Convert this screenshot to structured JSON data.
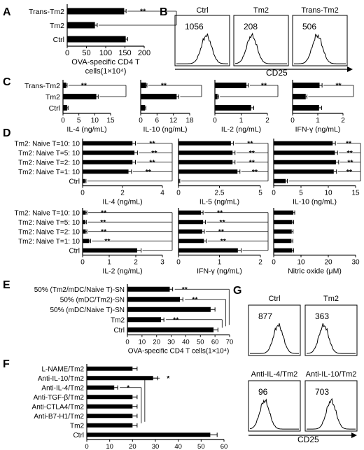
{
  "panel_letters": [
    "A",
    "B",
    "C",
    "D",
    "E",
    "F",
    "G"
  ],
  "chart_data": [
    {
      "id": "A",
      "panel": "A",
      "type": "bar",
      "categories": [
        "Trans-Tm2",
        "Tm2",
        "Ctrl"
      ],
      "values": [
        148,
        72,
        152
      ],
      "errors": [
        5,
        6,
        5
      ],
      "xlim": [
        0,
        200
      ],
      "xticks": [
        "0",
        "50",
        "100",
        "150",
        "200"
      ],
      "xlabel": "OVA-specific CD4 T cells(1×10⁴)",
      "sig": [
        {
          "from": 0,
          "to": 1,
          "label": "**"
        }
      ]
    },
    {
      "id": "C1",
      "panel": "C",
      "type": "bar",
      "categories": [
        "Trans-Tm2",
        "Tm2",
        "Ctrl"
      ],
      "values": [
        1.0,
        10.5,
        1.3
      ],
      "errors": [
        0.3,
        0.6,
        0.3
      ],
      "xlim": [
        0,
        15
      ],
      "xticks": [
        "0",
        "5",
        "10",
        "15"
      ],
      "xlabel": "IL-4 (ng/mL)",
      "sig": [
        {
          "from": 0,
          "to": 1,
          "label": "**"
        }
      ]
    },
    {
      "id": "C2",
      "panel": "C",
      "type": "bar",
      "categories": [
        "Trans-Tm2",
        "Tm2",
        "Ctrl"
      ],
      "values": [
        2.0,
        13.2,
        1.6
      ],
      "errors": [
        0.3,
        0.8,
        0.3
      ],
      "xlim": [
        0,
        18
      ],
      "xticks": [
        "0",
        "6",
        "12",
        "18"
      ],
      "xlabel": "IL-10 (ng/mL)",
      "sig": [
        {
          "from": 0,
          "to": 1,
          "label": "**"
        }
      ]
    },
    {
      "id": "C3",
      "panel": "C",
      "type": "bar",
      "categories": [
        "Trans-Tm2",
        "Tm2",
        "Ctrl"
      ],
      "values": [
        1.2,
        0.1,
        1.38
      ],
      "errors": [
        0.08,
        0.04,
        0.1
      ],
      "xlim": [
        0,
        2
      ],
      "xticks": [
        "0",
        "1",
        "2"
      ],
      "xlabel": "IL-2 (ng/mL)",
      "sig": [
        {
          "from": 0,
          "to": 1,
          "label": "**"
        }
      ]
    },
    {
      "id": "C4",
      "panel": "C",
      "type": "bar",
      "categories": [
        "Trans-Tm2",
        "Tm2",
        "Ctrl"
      ],
      "values": [
        1.07,
        0.52,
        1.05
      ],
      "errors": [
        0.1,
        0.05,
        0.1
      ],
      "xlim": [
        0,
        2
      ],
      "xticks": [
        "0",
        "1",
        "2"
      ],
      "xlabel": "IFN-γ (ng/mL)",
      "sig": [
        {
          "from": 0,
          "to": 1,
          "label": "**"
        }
      ]
    },
    {
      "id": "D1",
      "panel": "D",
      "type": "bar",
      "categories": [
        "Tm2: Naive T=10: 10",
        "Tm2: Naive T=5: 10",
        "Tm2: Naive T=2: 10",
        "Tm2: Naive T=1: 10",
        "Ctrl"
      ],
      "values": [
        2.5,
        2.6,
        2.5,
        2.3,
        0.12
      ],
      "errors": [
        0.15,
        0.15,
        0.15,
        0.15,
        0.05
      ],
      "xlim": [
        0,
        4
      ],
      "xticks": [
        "0",
        "2",
        "4"
      ],
      "xlabel": "IL-4 (ng/mL)",
      "sig": [
        {
          "from": 0,
          "to": 4,
          "label": "**"
        },
        {
          "from": 1,
          "to": 4,
          "label": "**"
        },
        {
          "from": 2,
          "to": 4,
          "label": "**"
        },
        {
          "from": 3,
          "to": 4,
          "label": "**"
        }
      ]
    },
    {
      "id": "D2",
      "panel": "D",
      "type": "bar",
      "categories": [
        "Tm2: Naive T=10: 10",
        "Tm2: Naive T=5: 10",
        "Tm2: Naive T=2: 10",
        "Tm2: Naive T=1: 10",
        "Ctrl"
      ],
      "values": [
        3.2,
        3.3,
        3.3,
        3.6,
        0.05
      ],
      "errors": [
        0.15,
        0.15,
        0.15,
        0.15,
        0.03
      ],
      "xlim": [
        0,
        5
      ],
      "xticks": [
        "0",
        "2.5",
        "5"
      ],
      "xlabel": "IL-5 (ng/mL)",
      "sig": [
        {
          "from": 0,
          "to": 4,
          "label": "**"
        },
        {
          "from": 1,
          "to": 4,
          "label": "**"
        },
        {
          "from": 2,
          "to": 4,
          "label": "**"
        },
        {
          "from": 3,
          "to": 4,
          "label": "**"
        }
      ]
    },
    {
      "id": "D3",
      "panel": "D",
      "type": "bar",
      "categories": [
        "Tm2: Naive T=10: 10",
        "Tm2: Naive T=5: 10",
        "Tm2: Naive T=2: 10",
        "Tm2: Naive T=1: 10",
        "Ctrl"
      ],
      "values": [
        10.8,
        11.2,
        11.4,
        11.0,
        2.2
      ],
      "errors": [
        0.5,
        0.5,
        0.5,
        0.5,
        0.3
      ],
      "xlim": [
        0,
        15
      ],
      "xticks": [
        "0",
        "5",
        "10",
        "15"
      ],
      "xlabel": "IL-10 (ng/mL)",
      "sig": [
        {
          "from": 0,
          "to": 4,
          "label": "**"
        },
        {
          "from": 1,
          "to": 4,
          "label": "**"
        },
        {
          "from": 2,
          "to": 4,
          "label": "**"
        },
        {
          "from": 3,
          "to": 4,
          "label": "**"
        }
      ]
    },
    {
      "id": "D4",
      "panel": "D",
      "type": "bar",
      "categories": [
        "Tm2: Naive T=10: 10",
        "Tm2: Naive T=5: 10",
        "Tm2: Naive T=2: 10",
        "Tm2: Naive T=1: 10",
        "Ctrl"
      ],
      "values": [
        0.12,
        0.1,
        0.12,
        0.25,
        2.05
      ],
      "errors": [
        0.04,
        0.04,
        0.04,
        0.05,
        0.15
      ],
      "xlim": [
        0,
        3
      ],
      "xticks": [
        "0",
        "1",
        "2",
        "3"
      ],
      "xlabel": "IL-2 (ng/mL)",
      "sig": [
        {
          "from": 0,
          "to": 4,
          "label": "**"
        },
        {
          "from": 1,
          "to": 4,
          "label": "**"
        },
        {
          "from": 2,
          "to": 4,
          "label": "**"
        },
        {
          "from": 3,
          "to": 4,
          "label": "**"
        }
      ]
    },
    {
      "id": "D5",
      "panel": "D",
      "type": "bar",
      "categories": [
        "Tm2: Naive T=10: 10",
        "Tm2: Naive T=5: 10",
        "Tm2: Naive T=2: 10",
        "Tm2: Naive T=1: 10",
        "Ctrl"
      ],
      "values": [
        0.55,
        0.6,
        0.58,
        0.62,
        1.45
      ],
      "errors": [
        0.05,
        0.06,
        0.05,
        0.06,
        0.08
      ],
      "xlim": [
        0,
        2
      ],
      "xticks": [
        "0",
        "1",
        "2"
      ],
      "xlabel": "IFN-γ (ng/mL)",
      "sig": [
        {
          "from": 0,
          "to": 4,
          "label": "**"
        },
        {
          "from": 1,
          "to": 4,
          "label": "**"
        },
        {
          "from": 2,
          "to": 4,
          "label": "**"
        },
        {
          "from": 3,
          "to": 4,
          "label": "**"
        }
      ]
    },
    {
      "id": "D6",
      "panel": "D",
      "type": "bar",
      "categories": [
        "Tm2: Naive T=10: 10",
        "Tm2: Naive T=5: 10",
        "Tm2: Naive T=2: 10",
        "Tm2: Naive T=1: 10",
        "Ctrl"
      ],
      "values": [
        7.2,
        6.8,
        6.6,
        6.5,
        6.8
      ],
      "errors": [
        0.5,
        0.5,
        0.5,
        0.5,
        0.5
      ],
      "xlim": [
        0,
        30
      ],
      "xticks": [
        "0",
        "10",
        "20",
        "30"
      ],
      "xlabel": "Nitric oxide (μM)",
      "sig": []
    },
    {
      "id": "E",
      "panel": "E",
      "type": "bar",
      "categories": [
        "50% (Tm2/mDC/Naive T)-SN",
        "50% (mDC/Tm2)-SN",
        "50% (mDC/Naive T)-SN",
        "Tm2",
        "Ctrl"
      ],
      "values": [
        29,
        36,
        57,
        23,
        59
      ],
      "errors": [
        2,
        2,
        3,
        2,
        3
      ],
      "xlim": [
        0,
        70
      ],
      "xticks": [
        "0",
        "10",
        "20",
        "30",
        "40",
        "50",
        "60",
        "70"
      ],
      "xlabel": "OVA-specific CD4 T cells(1×10⁴)",
      "sig": [
        {
          "from": 0,
          "to": 4,
          "label": "**"
        },
        {
          "from": 1,
          "to": 4,
          "label": "**"
        },
        {
          "from": 3,
          "to": 4,
          "label": "**"
        }
      ]
    },
    {
      "id": "F",
      "panel": "F",
      "type": "bar",
      "categories": [
        "L-NAME/Tm2",
        "Anti-IL-10/Tm2",
        "Anti-IL-4/Tm2",
        "Anti-TGF-β/Tm2",
        "Anti-CTLA4/Tm2",
        "Anti-B7-H1/Tm2",
        "Tm2",
        "Ctrl"
      ],
      "values": [
        20,
        29,
        12,
        20,
        20,
        20,
        20,
        54
      ],
      "errors": [
        2,
        2,
        1.5,
        2,
        2,
        2,
        2,
        3
      ],
      "xlim": [
        0,
        60
      ],
      "xticks": [
        "0",
        "10",
        "20",
        "30",
        "40",
        "50",
        "60"
      ],
      "xlabel": "OVA-specific CD4 T cells(1×10⁴)",
      "sig": [
        {
          "from": 1,
          "to": 6,
          "label": "*"
        },
        {
          "from": 2,
          "to": 6,
          "label": "*"
        }
      ]
    },
    {
      "id": "B1",
      "panel": "B",
      "type": "histogram",
      "title": "Ctrl",
      "value": "1056",
      "peak": 0.58
    },
    {
      "id": "B2",
      "panel": "B",
      "type": "histogram",
      "title": "Tm2",
      "value": "208",
      "peak": 0.32
    },
    {
      "id": "B3",
      "panel": "B",
      "type": "histogram",
      "title": "Trans-Tm2",
      "value": "506",
      "peak": 0.45
    },
    {
      "id": "G1",
      "panel": "G",
      "type": "histogram",
      "title": "Ctrl",
      "value": "877",
      "peak": 0.58
    },
    {
      "id": "G2",
      "panel": "G",
      "type": "histogram",
      "title": "Tm2",
      "value": "363",
      "peak": 0.35
    },
    {
      "id": "G3",
      "panel": "G",
      "type": "histogram",
      "title": "Anti-IL-4/Tm2",
      "value": "96",
      "peak": 0.3
    },
    {
      "id": "G4",
      "panel": "G",
      "type": "histogram",
      "title": "Anti-IL-10/Tm2",
      "value": "703",
      "peak": 0.5
    }
  ],
  "flow_axis": {
    "B": "CD25",
    "G": "CD25"
  }
}
